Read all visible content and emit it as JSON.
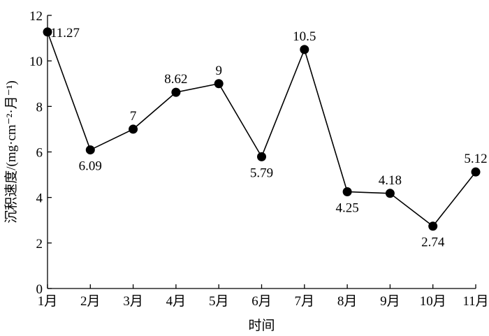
{
  "chart_data": {
    "type": "line",
    "categories": [
      "1月",
      "2月",
      "3月",
      "4月",
      "5月",
      "6月",
      "7月",
      "8月",
      "9月",
      "10月",
      "11月"
    ],
    "values": [
      11.27,
      6.09,
      7,
      8.62,
      9,
      5.79,
      10.5,
      4.25,
      4.18,
      2.74,
      5.12
    ],
    "data_labels": [
      "11.27",
      "6.09",
      "7",
      "8.62",
      "9",
      "5.79",
      "10.5",
      "4.25",
      "4.18",
      "2.74",
      "5.12"
    ],
    "label_position": [
      "right",
      "below",
      "above",
      "above",
      "above",
      "below",
      "above",
      "below",
      "above",
      "below",
      "above"
    ],
    "xlabel": "时间",
    "ylabel": "沉积速度/(mg·cm⁻²·月⁻¹)",
    "ylim": [
      0,
      12
    ],
    "yticks": [
      0,
      2,
      4,
      6,
      8,
      10,
      12
    ],
    "grid": false,
    "line_color": "#000000",
    "marker_color": "#000000"
  }
}
